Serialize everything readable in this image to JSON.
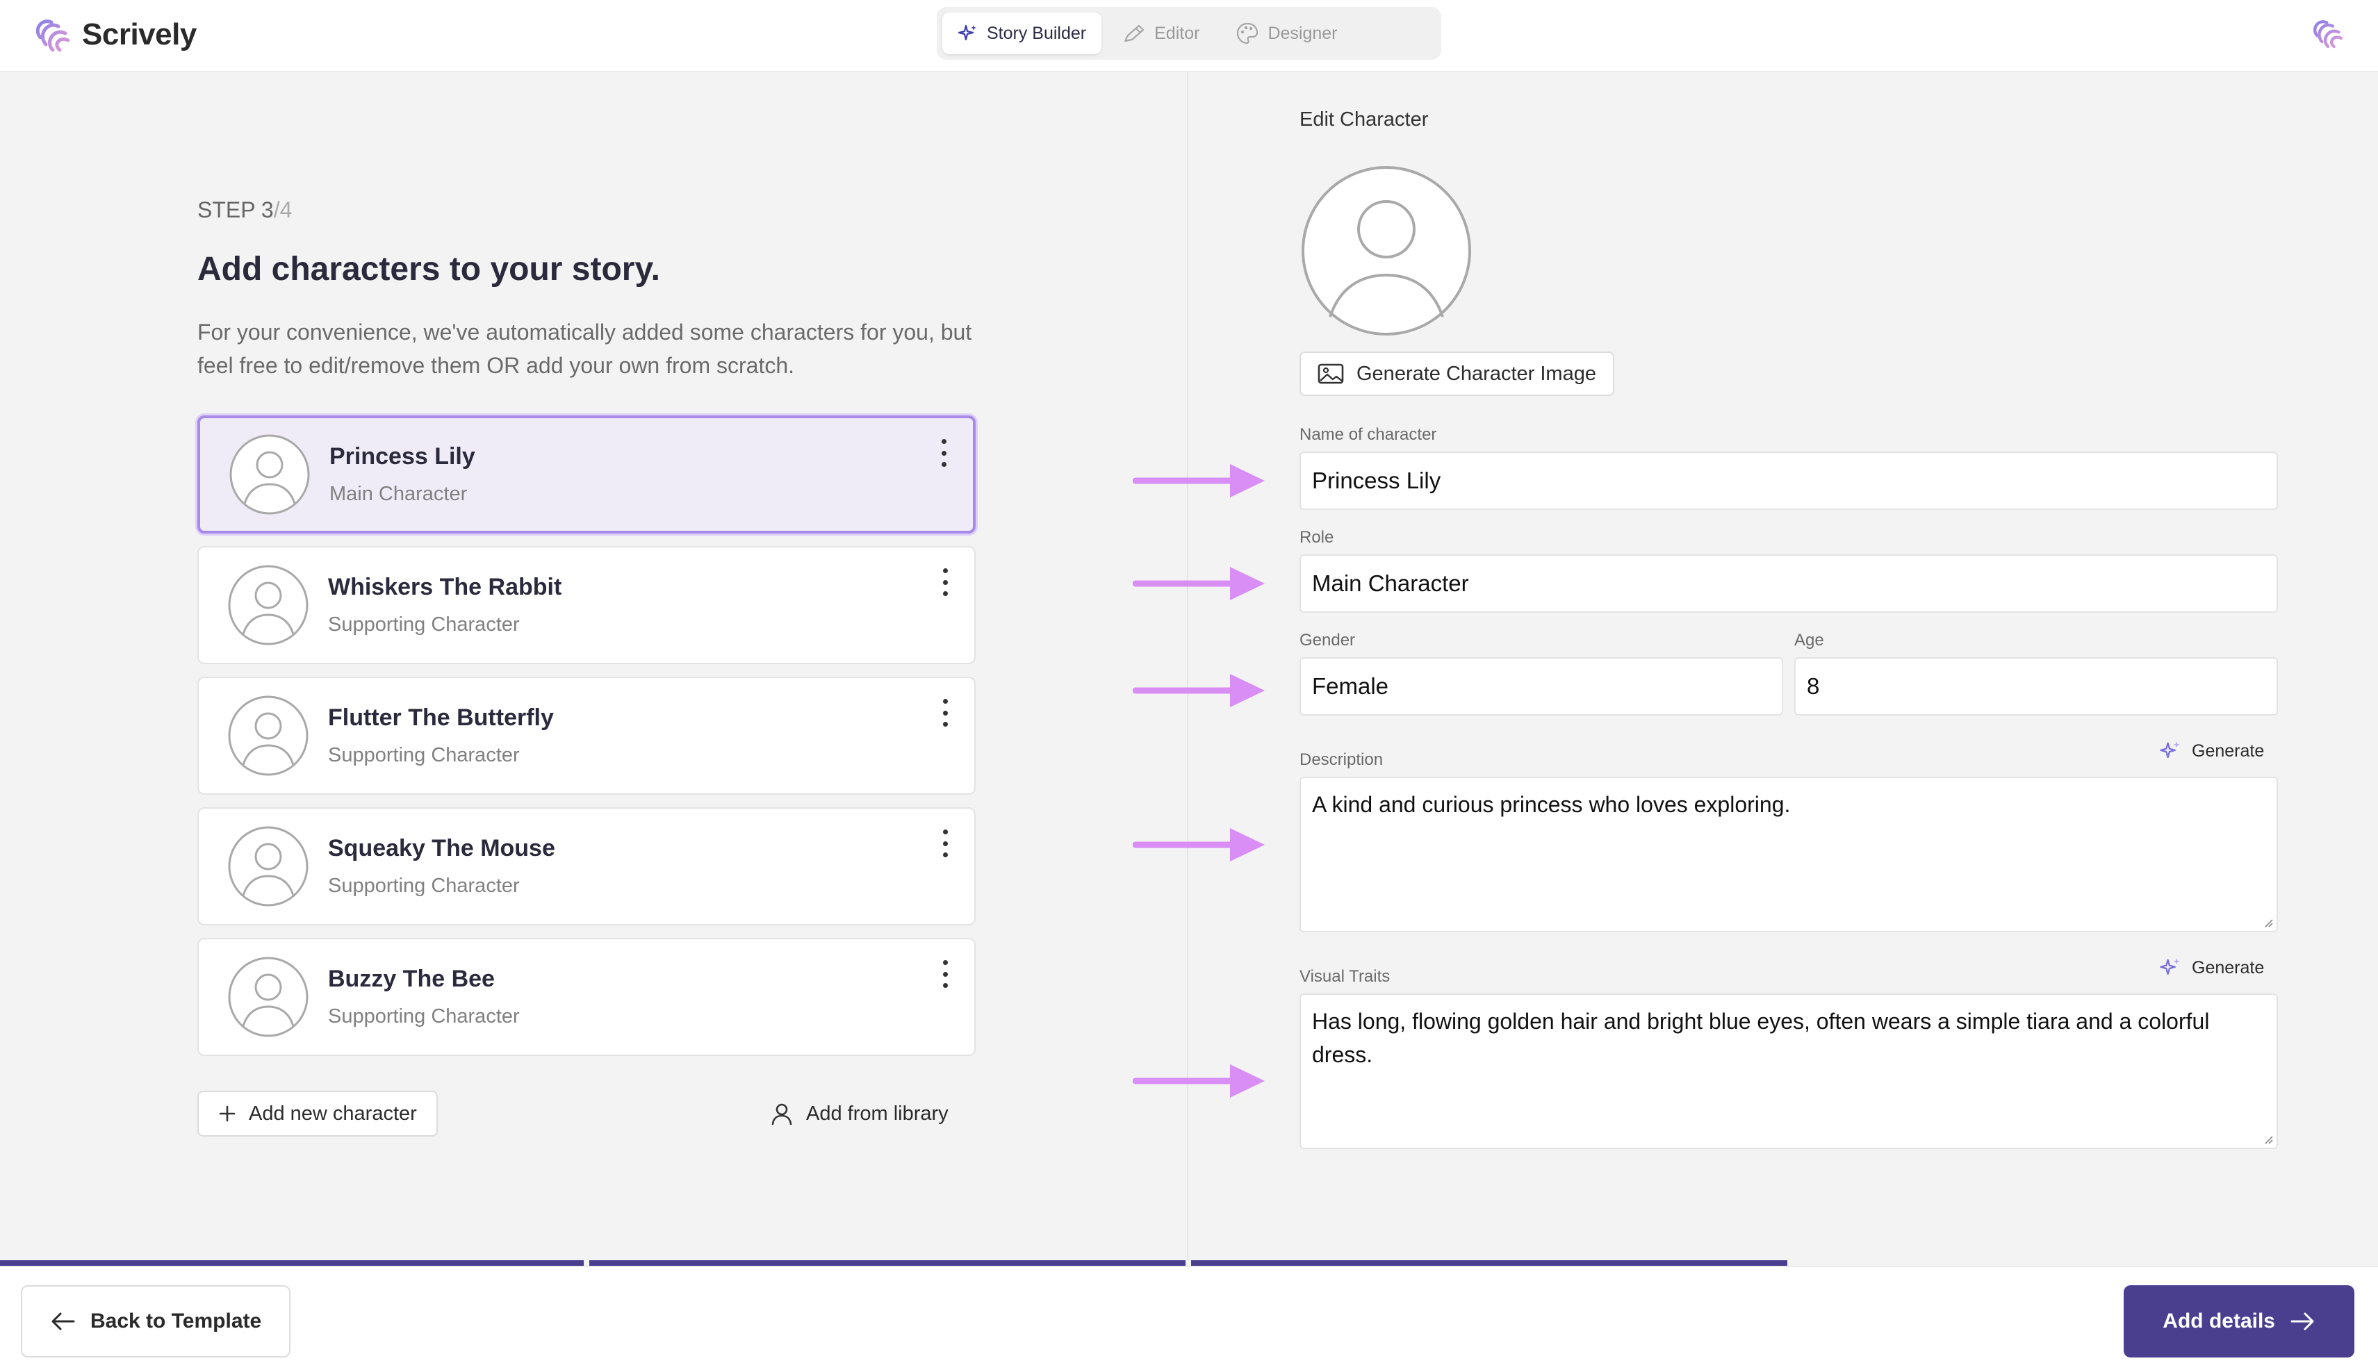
{
  "app": {
    "name": "Scrively"
  },
  "modes": [
    {
      "label": "Story Builder",
      "active": true
    },
    {
      "label": "Editor",
      "active": false
    },
    {
      "label": "Designer",
      "active": false
    }
  ],
  "step": {
    "prefix": "STEP 3",
    "total": "/4"
  },
  "heading": "Add characters to your story.",
  "subtext": "For your convenience, we've automatically added some characters for you, but feel free to edit/remove them OR add your own from scratch.",
  "characters": [
    {
      "name": "Princess Lily",
      "role": "Main Character",
      "selected": true
    },
    {
      "name": "Whiskers The Rabbit",
      "role": "Supporting Character",
      "selected": false
    },
    {
      "name": "Flutter The Butterfly",
      "role": "Supporting Character",
      "selected": false
    },
    {
      "name": "Squeaky The Mouse",
      "role": "Supporting Character",
      "selected": false
    },
    {
      "name": "Buzzy The Bee",
      "role": "Supporting Character",
      "selected": false
    }
  ],
  "actions": {
    "add_new": "Add new character",
    "add_library": "Add from library"
  },
  "edit": {
    "title": "Edit Character",
    "generate_image": "Generate Character Image",
    "name_label": "Name of character",
    "name_value": "Princess Lily",
    "role_label": "Role",
    "role_value": "Main Character",
    "gender_label": "Gender",
    "gender_value": "Female",
    "age_label": "Age",
    "age_value": "8",
    "description_label": "Description",
    "description_value": "A kind and curious princess who loves exploring.",
    "visual_label": "Visual Traits",
    "visual_value": "Has long, flowing golden hair and bright blue eyes, often wears a simple tiara and a colorful dress.",
    "generate_label": "Generate"
  },
  "progress": {
    "segments_total": 4,
    "segments_complete": 3
  },
  "footer": {
    "back": "Back to Template",
    "next": "Add details"
  },
  "colors": {
    "accent": "#4a3f8f",
    "selected_bg": "#efecf8",
    "selected_border": "#a88be8",
    "arrow": "#d88ef5"
  }
}
